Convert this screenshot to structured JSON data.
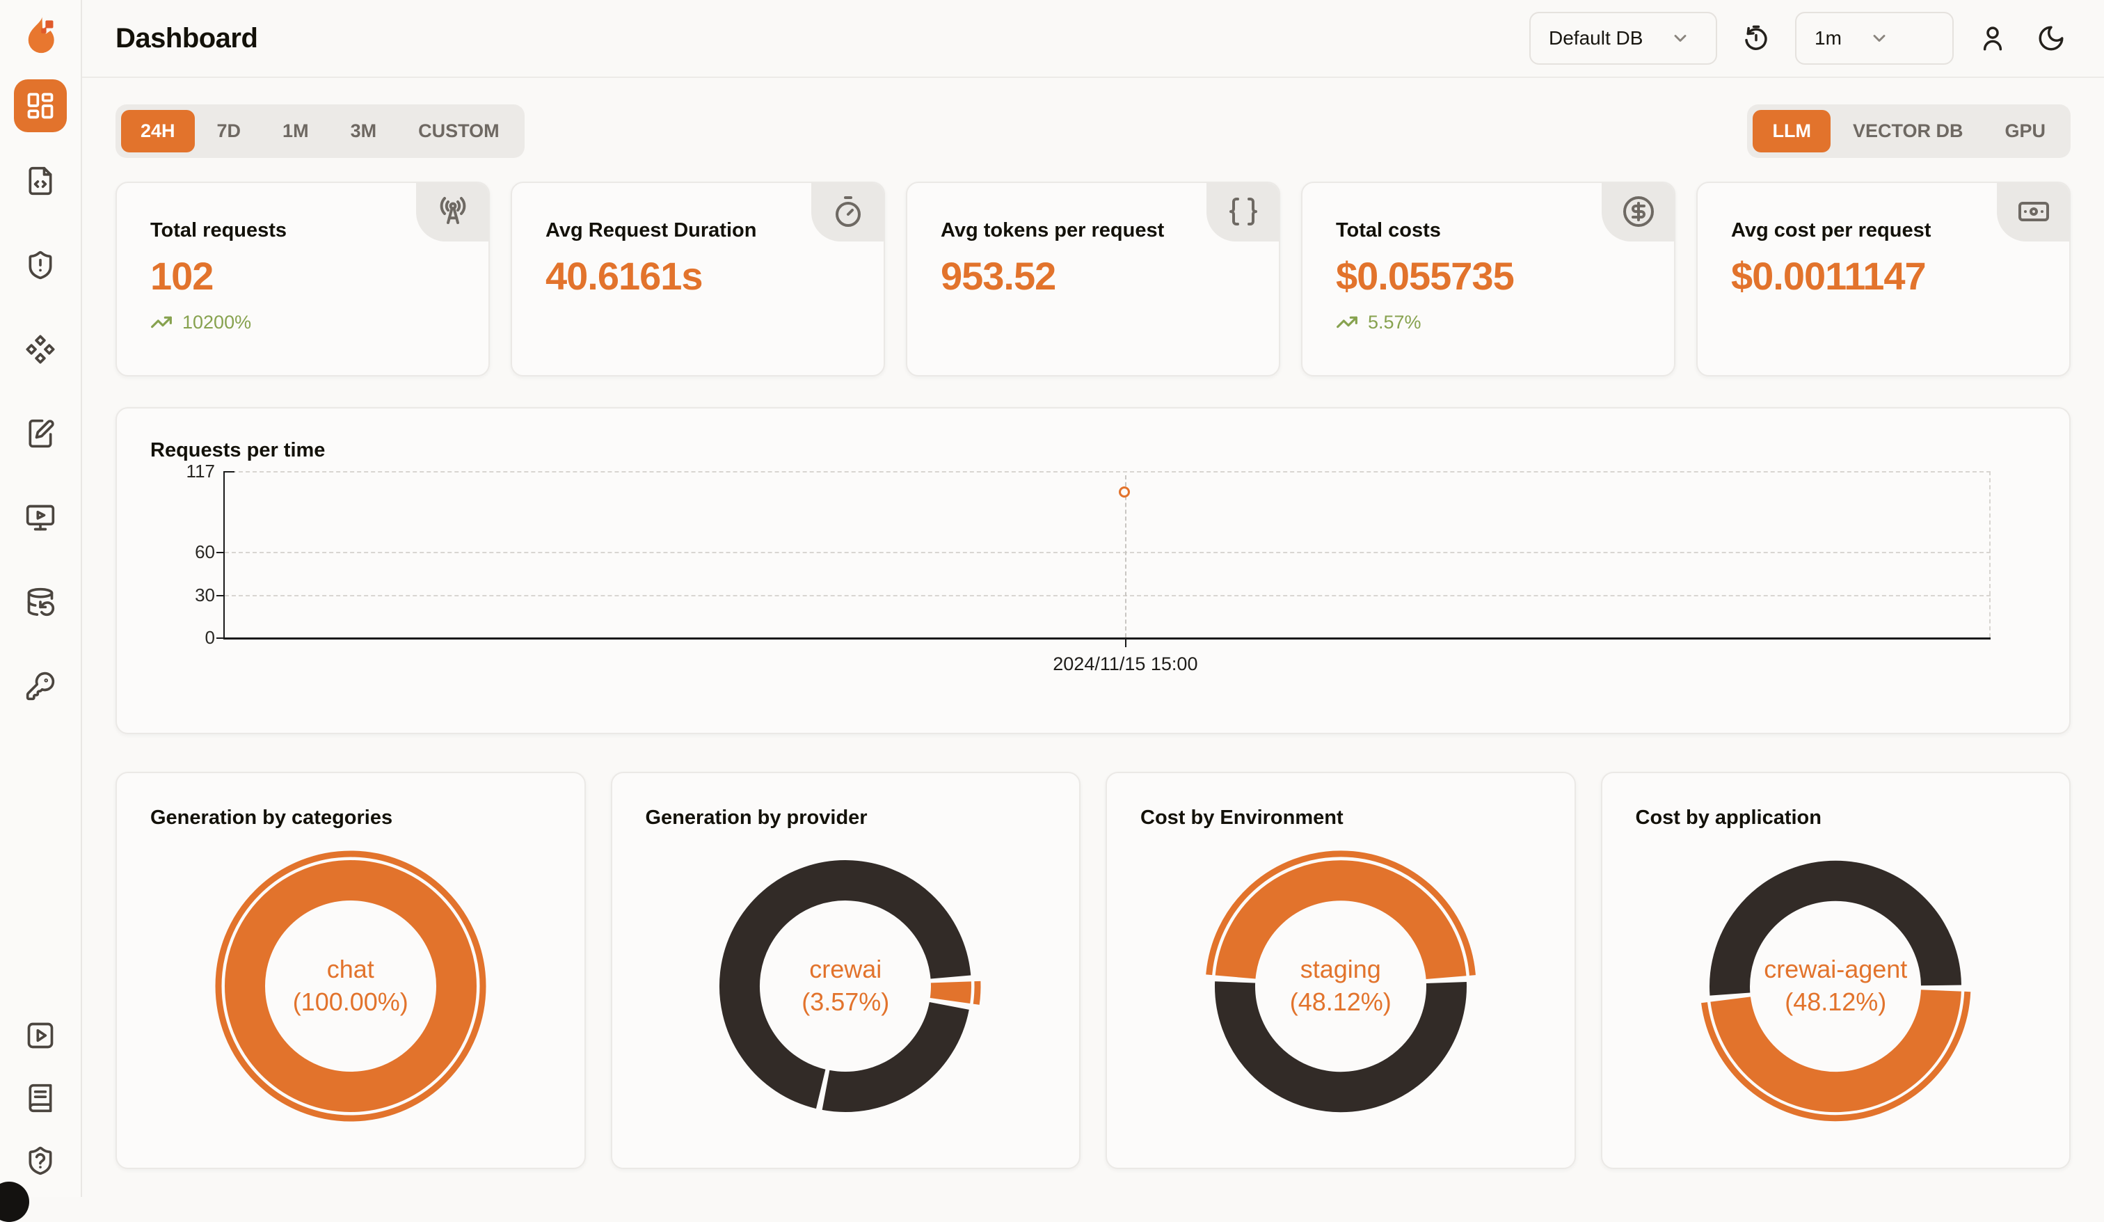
{
  "app": {
    "title": "Dashboard"
  },
  "colors": {
    "accent_orange": "#E2732C",
    "charcoal": "#322B27",
    "trend_green": "#87A24F",
    "page_bg": "#FAF9F7",
    "card_bg": "#FCFBFA"
  },
  "header": {
    "db_selector": {
      "value": "Default DB"
    },
    "interval_selector": {
      "value": "1m"
    }
  },
  "sidebar": {
    "top_items": [
      {
        "icon": "layout-dashboard-icon",
        "active": true
      },
      {
        "icon": "file-code-icon",
        "active": false
      },
      {
        "icon": "shield-alert-icon",
        "active": false
      },
      {
        "icon": "component-diamonds-icon",
        "active": false
      },
      {
        "icon": "notebook-pen-icon",
        "active": false
      },
      {
        "icon": "monitor-play-icon",
        "active": false
      },
      {
        "icon": "database-backup-icon",
        "active": false
      },
      {
        "icon": "key-icon",
        "active": false
      }
    ],
    "bottom_items": [
      {
        "icon": "square-play-icon"
      },
      {
        "icon": "book-icon"
      },
      {
        "icon": "shield-question-icon"
      }
    ]
  },
  "time_range_tabs": {
    "items": [
      "24H",
      "7D",
      "1M",
      "3M",
      "CUSTOM"
    ],
    "active": "24H"
  },
  "category_tabs": {
    "items": [
      "LLM",
      "VECTOR DB",
      "GPU"
    ],
    "active": "LLM"
  },
  "stat_cards": [
    {
      "label": "Total requests",
      "value": "102",
      "trend": "10200%",
      "icon": "radio-tower-icon"
    },
    {
      "label": "Avg Request Duration",
      "value": "40.6161s",
      "trend": "",
      "icon": "timer-icon"
    },
    {
      "label": "Avg tokens per request",
      "value": "953.52",
      "trend": "",
      "icon": "braces-icon"
    },
    {
      "label": "Total costs",
      "value": "$0.055735",
      "trend": "5.57%",
      "icon": "circle-dollar-icon"
    },
    {
      "label": "Avg cost per request",
      "value": "$0.0011147",
      "trend": "",
      "icon": "banknote-icon"
    }
  ],
  "chart_data": [
    {
      "type": "line",
      "title": "Requests per time",
      "x": [
        "2024/11/15 15:00"
      ],
      "series": [
        {
          "name": "requests",
          "values": [
            102
          ]
        }
      ],
      "ylim": [
        0,
        117
      ],
      "yticks": [
        117,
        60,
        30,
        0
      ],
      "grid": "dashed-horizontal",
      "legend": "none",
      "point_style": "open-circle",
      "x_position_pct": 51,
      "color": "#E2732C"
    },
    {
      "type": "pie",
      "title": "Generation by categories",
      "center_label": "chat",
      "center_pct": "(100.00%)",
      "rotation": 0,
      "slices": [
        {
          "name": "chat",
          "pct": 100.0,
          "color": "#E2732C",
          "selected": true
        }
      ]
    },
    {
      "type": "pie",
      "title": "Generation by provider",
      "center_label": "crewai",
      "center_pct": "(3.57%)",
      "rotation": 86.5,
      "slices": [
        {
          "name": "crewai",
          "pct": 3.57,
          "color": "#E2732C",
          "selected": true
        },
        {
          "pct": 25.74,
          "color": "#322B27"
        },
        {
          "pct": 70.69,
          "color": "#322B27"
        }
      ]
    },
    {
      "type": "pie",
      "title": "Cost by Environment",
      "center_label": "staging",
      "center_pct": "(48.12%)",
      "rotation": 273.5,
      "slices": [
        {
          "name": "staging",
          "pct": 48.12,
          "color": "#E2732C",
          "selected": true
        },
        {
          "pct": 51.88,
          "color": "#322B27"
        }
      ]
    },
    {
      "type": "pie",
      "title": "Cost by application",
      "center_label": "crewai-agent",
      "center_pct": "(48.12%)",
      "rotation": 91,
      "slices": [
        {
          "name": "crewai-agent",
          "pct": 48.12,
          "color": "#E2732C",
          "selected": true
        },
        {
          "pct": 51.88,
          "color": "#322B27"
        }
      ]
    }
  ]
}
